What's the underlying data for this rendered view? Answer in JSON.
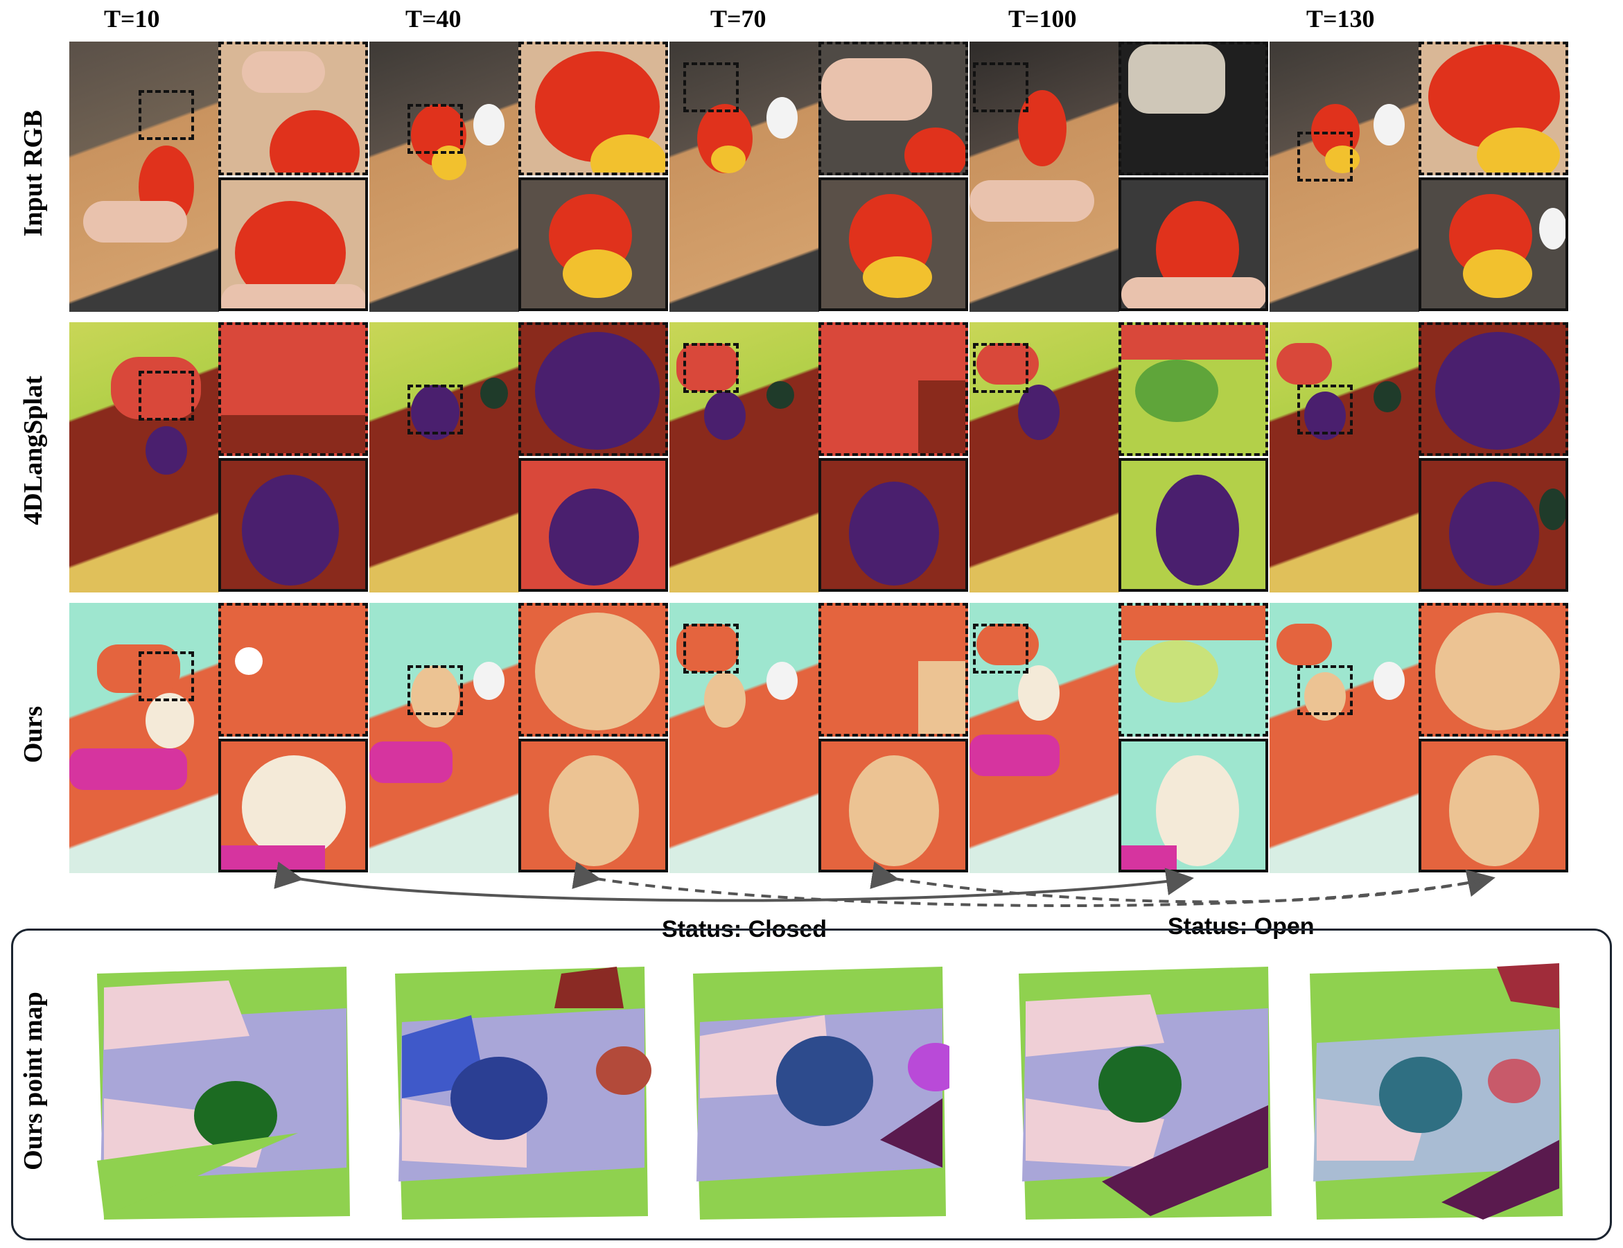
{
  "time_labels": [
    "T=10",
    "T=40",
    "T=70",
    "T=100",
    "T=130"
  ],
  "row_labels": [
    "Input RGB",
    "4DLangSplat",
    "Ours",
    "Ours point map"
  ],
  "status": {
    "closed": "Status: Closed",
    "open": "Status: Open"
  },
  "colors": {
    "rgb_bg": "#6e5a47",
    "rgb_board": "#c9935f",
    "rgb_object": "#e0321c",
    "rgb_inner": "#f2c12e",
    "rgb_skin": "#e9c2ad",
    "lang_bg": "#c9d657",
    "lang_dark": "#8a2a1c",
    "lang_red": "#d9483a",
    "lang_purple": "#4a1f6e",
    "ours_bg": "#9ee6cf",
    "ours_orange": "#e4643e",
    "ours_peach": "#ecc393",
    "ours_pink": "#d6349f",
    "pm_green": "#8fd14f",
    "pm_lavender": "#a9a6d8",
    "pm_pink": "#efcfd6",
    "pm_dark": "#5a1a4e"
  },
  "point_map_object_colors": [
    "#1c6b22",
    "#2b3f93",
    "#2d4b8d",
    "#1b6a26",
    "#2f6f82"
  ]
}
